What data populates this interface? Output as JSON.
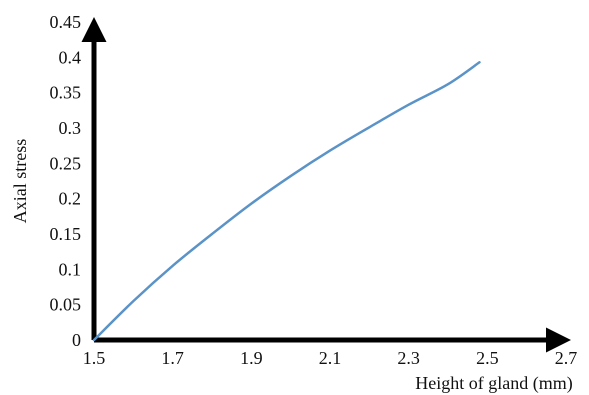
{
  "chart_data": {
    "type": "line",
    "xlabel": "Height of gland (mm)",
    "ylabel": "Axial stress",
    "xlim": [
      1.5,
      2.7
    ],
    "ylim": [
      0,
      0.45
    ],
    "x_ticks": [
      "1.5",
      "1.7",
      "1.9",
      "2.1",
      "2.3",
      "2.5",
      "2.7"
    ],
    "y_ticks": [
      "0",
      "0.05",
      "0.1",
      "0.15",
      "0.2",
      "0.25",
      "0.3",
      "0.35",
      "0.4",
      "0.45"
    ],
    "grid": false,
    "series": [
      {
        "color": "#5b93c7",
        "points": [
          [
            1.5,
            0.0
          ],
          [
            1.6,
            0.055
          ],
          [
            1.7,
            0.105
          ],
          [
            1.8,
            0.15
          ],
          [
            1.9,
            0.193
          ],
          [
            2.0,
            0.232
          ],
          [
            2.1,
            0.268
          ],
          [
            2.2,
            0.301
          ],
          [
            2.3,
            0.333
          ],
          [
            2.4,
            0.362
          ],
          [
            2.48,
            0.393
          ]
        ]
      }
    ]
  },
  "colors": {
    "axis": "#000000",
    "line": "#5b93c7"
  }
}
